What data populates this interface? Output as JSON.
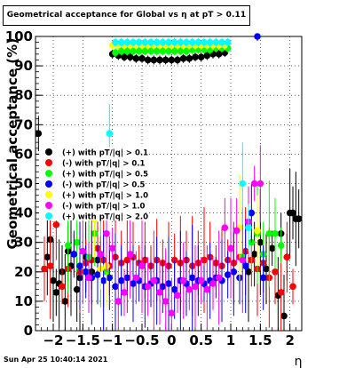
{
  "chart_data": {
    "type": "scatter",
    "title": "Geometrical acceptance for Global vs  η at pT > 0.11",
    "xlabel": "η",
    "ylabel": "Geometrical acceptance (%)",
    "xlim": [
      -2.3,
      2.2
    ],
    "ylim": [
      0,
      100
    ],
    "x_ticks": [
      -2,
      -1.5,
      -1,
      -0.5,
      0,
      0.5,
      1,
      1.5,
      2
    ],
    "x_tick_labels": [
      "−2",
      "−1.5",
      "−1",
      "−0.5",
      "0",
      "0.5",
      "1",
      "1.5",
      "2"
    ],
    "y_ticks": [
      0,
      10,
      20,
      30,
      40,
      50,
      60,
      70,
      80,
      90,
      100
    ],
    "grid": true,
    "legend_position": "left-middle",
    "series": [
      {
        "name": "(+) with pT/|q| > 0.1",
        "color": "#000000",
        "points": [
          [
            -2.25,
            67
          ],
          [
            -2.1,
            25
          ],
          [
            -2.05,
            31
          ],
          [
            -2.0,
            17
          ],
          [
            -1.95,
            13
          ],
          [
            -1.9,
            16
          ],
          [
            -1.85,
            20
          ],
          [
            -1.8,
            10
          ],
          [
            -1.75,
            27
          ],
          [
            -1.7,
            22
          ],
          [
            -1.6,
            14
          ],
          [
            -1.55,
            18
          ],
          [
            -1.45,
            25
          ],
          [
            -1.35,
            20
          ],
          [
            -1.25,
            24
          ],
          [
            -1.0,
            94
          ],
          [
            -0.9,
            93.5
          ],
          [
            -0.8,
            93
          ],
          [
            -0.7,
            93
          ],
          [
            -0.6,
            92.5
          ],
          [
            -0.5,
            92.5
          ],
          [
            -0.4,
            92
          ],
          [
            -0.3,
            92
          ],
          [
            -0.2,
            92
          ],
          [
            -0.1,
            92
          ],
          [
            0.0,
            92
          ],
          [
            0.1,
            92
          ],
          [
            0.2,
            92.5
          ],
          [
            0.3,
            92.5
          ],
          [
            0.4,
            93
          ],
          [
            0.5,
            93
          ],
          [
            0.6,
            93.5
          ],
          [
            0.7,
            94
          ],
          [
            0.8,
            94
          ],
          [
            0.9,
            94.5
          ],
          [
            1.3,
            20
          ],
          [
            1.4,
            26
          ],
          [
            1.5,
            30
          ],
          [
            1.6,
            21
          ],
          [
            1.7,
            28
          ],
          [
            1.8,
            12
          ],
          [
            1.85,
            33
          ],
          [
            1.9,
            5
          ],
          [
            1.95,
            25
          ],
          [
            2.0,
            40
          ],
          [
            2.05,
            40
          ],
          [
            2.1,
            38
          ],
          [
            2.15,
            38
          ]
        ]
      },
      {
        "name": "(-) with pT/|q| > 0.1",
        "color": "#ff0000",
        "points": [
          [
            -2.15,
            21
          ],
          [
            -2.05,
            22
          ],
          [
            -1.95,
            36
          ],
          [
            -1.85,
            15
          ],
          [
            -1.75,
            21
          ],
          [
            -1.65,
            26
          ],
          [
            -1.55,
            20
          ],
          [
            -1.45,
            23
          ],
          [
            -1.35,
            24
          ],
          [
            -1.25,
            28
          ],
          [
            -1.15,
            24
          ],
          [
            -1.05,
            22
          ],
          [
            -0.95,
            25
          ],
          [
            -0.85,
            23
          ],
          [
            -0.75,
            24
          ],
          [
            -0.65,
            25
          ],
          [
            -0.55,
            23
          ],
          [
            -0.45,
            24
          ],
          [
            -0.35,
            22
          ],
          [
            -0.25,
            24
          ],
          [
            -0.15,
            23
          ],
          [
            -0.05,
            22
          ],
          [
            0.05,
            24
          ],
          [
            0.15,
            23
          ],
          [
            0.25,
            24
          ],
          [
            0.35,
            22
          ],
          [
            0.45,
            23
          ],
          [
            0.55,
            24
          ],
          [
            0.65,
            25
          ],
          [
            0.75,
            23
          ],
          [
            0.85,
            22
          ],
          [
            0.95,
            24
          ],
          [
            1.05,
            23
          ],
          [
            1.15,
            25
          ],
          [
            1.25,
            27
          ],
          [
            1.35,
            24
          ],
          [
            1.45,
            21
          ],
          [
            1.55,
            23
          ],
          [
            1.65,
            18
          ],
          [
            1.75,
            20
          ],
          [
            1.85,
            13
          ],
          [
            1.95,
            25
          ],
          [
            2.05,
            15
          ]
        ]
      },
      {
        "name": "(+) with pT/|q| > 0.5",
        "color": "#00ff00",
        "points": [
          [
            -1.75,
            29
          ],
          [
            -1.6,
            30
          ],
          [
            -1.4,
            25
          ],
          [
            -1.3,
            33
          ],
          [
            -1.2,
            26
          ],
          [
            -1.1,
            20
          ],
          [
            -0.95,
            94.5
          ],
          [
            -0.85,
            95
          ],
          [
            -0.75,
            95
          ],
          [
            -0.65,
            95
          ],
          [
            -0.55,
            95
          ],
          [
            -0.45,
            95
          ],
          [
            -0.35,
            95
          ],
          [
            -0.25,
            95
          ],
          [
            -0.15,
            95
          ],
          [
            -0.05,
            95
          ],
          [
            0.05,
            95
          ],
          [
            0.15,
            95
          ],
          [
            0.25,
            95
          ],
          [
            0.35,
            95.5
          ],
          [
            0.45,
            95.5
          ],
          [
            0.55,
            95.5
          ],
          [
            0.65,
            95.5
          ],
          [
            0.75,
            96
          ],
          [
            0.85,
            96
          ],
          [
            0.95,
            96
          ],
          [
            1.2,
            25
          ],
          [
            1.35,
            30
          ],
          [
            1.45,
            33
          ],
          [
            1.55,
            26
          ],
          [
            1.65,
            33
          ],
          [
            1.75,
            33
          ],
          [
            1.85,
            29
          ]
        ]
      },
      {
        "name": "(-) with pT/|q| > 0.5",
        "color": "#0000ff",
        "points": [
          [
            -1.65,
            26
          ],
          [
            -1.55,
            22
          ],
          [
            -1.45,
            20
          ],
          [
            -1.35,
            18
          ],
          [
            -1.25,
            19
          ],
          [
            -1.15,
            17
          ],
          [
            -1.05,
            18
          ],
          [
            -0.95,
            15
          ],
          [
            -0.85,
            17
          ],
          [
            -0.75,
            18
          ],
          [
            -0.65,
            16
          ],
          [
            -0.55,
            17
          ],
          [
            -0.45,
            15
          ],
          [
            -0.35,
            16
          ],
          [
            -0.25,
            17
          ],
          [
            -0.15,
            15
          ],
          [
            -0.05,
            16
          ],
          [
            0.05,
            14
          ],
          [
            0.15,
            17
          ],
          [
            0.25,
            16
          ],
          [
            0.35,
            18
          ],
          [
            0.45,
            17
          ],
          [
            0.55,
            16
          ],
          [
            0.65,
            17
          ],
          [
            0.75,
            18
          ],
          [
            0.85,
            17
          ],
          [
            0.95,
            19
          ],
          [
            1.05,
            20
          ],
          [
            1.15,
            18
          ],
          [
            1.25,
            22
          ],
          [
            1.35,
            40
          ],
          [
            1.45,
            100
          ],
          [
            1.55,
            18
          ]
        ]
      },
      {
        "name": "(+) with pT/|q| > 1.0",
        "color": "#ffff00",
        "points": [
          [
            -1.3,
            38
          ],
          [
            -1.2,
            21
          ],
          [
            -1.1,
            22
          ],
          [
            -1.0,
            97
          ],
          [
            -0.9,
            97
          ],
          [
            -0.8,
            97
          ],
          [
            -0.7,
            97
          ],
          [
            -0.6,
            97
          ],
          [
            -0.5,
            97
          ],
          [
            -0.4,
            97
          ],
          [
            -0.3,
            97
          ],
          [
            -0.2,
            97
          ],
          [
            -0.1,
            97
          ],
          [
            0.0,
            97
          ],
          [
            0.1,
            97
          ],
          [
            0.2,
            97
          ],
          [
            0.3,
            97
          ],
          [
            0.4,
            97
          ],
          [
            0.5,
            97
          ],
          [
            0.6,
            97
          ],
          [
            0.7,
            97
          ],
          [
            0.8,
            97
          ],
          [
            0.9,
            97
          ],
          [
            1.15,
            35
          ],
          [
            1.45,
            34
          ]
        ]
      },
      {
        "name": "(-) with pT/|q| > 1.0",
        "color": "#ff00ff",
        "points": [
          [
            -1.5,
            27
          ],
          [
            -1.4,
            18
          ],
          [
            -1.2,
            26
          ],
          [
            -1.1,
            33
          ],
          [
            -1.0,
            28
          ],
          [
            -0.9,
            10
          ],
          [
            -0.8,
            13
          ],
          [
            -0.7,
            26
          ],
          [
            -0.6,
            18
          ],
          [
            -0.5,
            22
          ],
          [
            -0.4,
            15
          ],
          [
            -0.3,
            17
          ],
          [
            -0.2,
            13
          ],
          [
            -0.1,
            10
          ],
          [
            0.0,
            6
          ],
          [
            0.1,
            12
          ],
          [
            0.2,
            17
          ],
          [
            0.3,
            14
          ],
          [
            0.4,
            15
          ],
          [
            0.5,
            17
          ],
          [
            0.6,
            14
          ],
          [
            0.7,
            16
          ],
          [
            0.8,
            18
          ],
          [
            0.9,
            35
          ],
          [
            1.0,
            28
          ],
          [
            1.1,
            34
          ],
          [
            1.2,
            24
          ],
          [
            1.3,
            37
          ],
          [
            1.4,
            50
          ],
          [
            1.5,
            50
          ]
        ]
      },
      {
        "name": "(+) with pT/|q| > 2.0",
        "color": "#00ffff",
        "points": [
          [
            -1.05,
            67
          ],
          [
            -0.95,
            98
          ],
          [
            -0.85,
            98
          ],
          [
            -0.75,
            98
          ],
          [
            -0.65,
            98
          ],
          [
            -0.55,
            98
          ],
          [
            -0.45,
            98
          ],
          [
            -0.35,
            98
          ],
          [
            -0.25,
            98
          ],
          [
            -0.15,
            98
          ],
          [
            -0.05,
            98
          ],
          [
            0.05,
            98
          ],
          [
            0.15,
            98
          ],
          [
            0.25,
            98
          ],
          [
            0.35,
            98
          ],
          [
            0.45,
            98
          ],
          [
            0.55,
            98
          ],
          [
            0.65,
            98
          ],
          [
            0.75,
            98
          ],
          [
            0.85,
            98
          ],
          [
            0.95,
            98
          ],
          [
            1.2,
            50
          ],
          [
            1.3,
            35
          ]
        ]
      }
    ]
  },
  "footer": {
    "timestamp": "Sun Apr 25 10:40:14 2021"
  }
}
